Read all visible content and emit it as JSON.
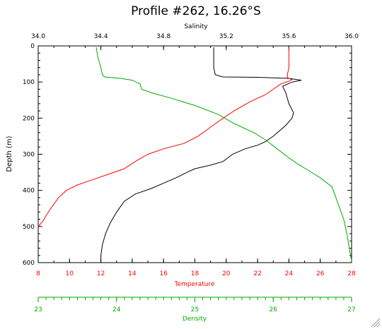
{
  "chart_data": {
    "type": "line",
    "title": "Profile #262, 16.26°S",
    "ylabel": "Depth (m)",
    "ylim": [
      0,
      600
    ],
    "y_reversed": true,
    "y_ticks": [
      0,
      100,
      200,
      300,
      400,
      500,
      600
    ],
    "axes": {
      "salinity": {
        "label": "Salinity",
        "position": "top",
        "color": "#000000",
        "range": [
          34.0,
          36.0
        ],
        "ticks": [
          34.0,
          34.4,
          34.8,
          35.2,
          35.6,
          36.0
        ],
        "tick_labels": [
          "34.0",
          "34.4",
          "34.8",
          "35.2",
          "35.6",
          "36.0"
        ]
      },
      "temperature": {
        "label": "Temperature",
        "position": "bottom",
        "color": "#ff0000",
        "range": [
          8,
          28
        ],
        "ticks": [
          8,
          10,
          12,
          14,
          16,
          18,
          20,
          22,
          24,
          26,
          28
        ],
        "tick_labels": [
          "8",
          "10",
          "12",
          "14",
          "16",
          "18",
          "20",
          "22",
          "24",
          "26",
          "28"
        ]
      },
      "density": {
        "label": "Density",
        "position": "bottom",
        "color": "#00aa00",
        "range": [
          23,
          27
        ],
        "ticks": [
          23,
          24,
          25,
          26,
          27
        ],
        "tick_labels": [
          "23",
          "24",
          "25",
          "26",
          "27"
        ]
      }
    },
    "series": [
      {
        "axis": "salinity",
        "color": "#000000",
        "points": [
          [
            35.12,
            4
          ],
          [
            35.12,
            30
          ],
          [
            35.12,
            60
          ],
          [
            35.13,
            80
          ],
          [
            35.18,
            86
          ],
          [
            35.4,
            87
          ],
          [
            35.6,
            90
          ],
          [
            35.68,
            95
          ],
          [
            35.62,
            100
          ],
          [
            35.56,
            112
          ],
          [
            35.58,
            130
          ],
          [
            35.6,
            160
          ],
          [
            35.63,
            185
          ],
          [
            35.62,
            200
          ],
          [
            35.58,
            220
          ],
          [
            35.5,
            250
          ],
          [
            35.45,
            265
          ],
          [
            35.4,
            275
          ],
          [
            35.32,
            285
          ],
          [
            35.24,
            300
          ],
          [
            35.18,
            320
          ],
          [
            35.1,
            330
          ],
          [
            35.0,
            340
          ],
          [
            34.95,
            350
          ],
          [
            34.88,
            365
          ],
          [
            34.8,
            380
          ],
          [
            34.72,
            395
          ],
          [
            34.62,
            410
          ],
          [
            34.55,
            430
          ],
          [
            34.5,
            460
          ],
          [
            34.46,
            490
          ],
          [
            34.43,
            520
          ],
          [
            34.41,
            550
          ],
          [
            34.4,
            580
          ],
          [
            34.4,
            600
          ]
        ]
      },
      {
        "axis": "temperature",
        "color": "#ff0000",
        "points": [
          [
            24.0,
            4
          ],
          [
            24.0,
            30
          ],
          [
            24.0,
            60
          ],
          [
            23.9,
            80
          ],
          [
            23.9,
            88
          ],
          [
            24.2,
            93
          ],
          [
            24.0,
            98
          ],
          [
            23.5,
            105
          ],
          [
            23.0,
            120
          ],
          [
            22.5,
            135
          ],
          [
            21.5,
            155
          ],
          [
            20.5,
            180
          ],
          [
            19.8,
            200
          ],
          [
            19.0,
            225
          ],
          [
            18.2,
            250
          ],
          [
            17.3,
            270
          ],
          [
            16.0,
            285
          ],
          [
            15.0,
            300
          ],
          [
            14.2,
            320
          ],
          [
            13.5,
            340
          ],
          [
            12.5,
            355
          ],
          [
            11.5,
            370
          ],
          [
            10.5,
            385
          ],
          [
            9.8,
            400
          ],
          [
            9.3,
            420
          ],
          [
            8.8,
            450
          ],
          [
            8.5,
            470
          ],
          [
            8.3,
            485
          ],
          [
            8.0,
            500
          ]
        ]
      },
      {
        "axis": "density",
        "color": "#00aa00",
        "points": [
          [
            23.74,
            4
          ],
          [
            23.76,
            30
          ],
          [
            23.8,
            60
          ],
          [
            23.82,
            80
          ],
          [
            23.85,
            86
          ],
          [
            24.05,
            90
          ],
          [
            24.2,
            95
          ],
          [
            24.3,
            105
          ],
          [
            24.32,
            120
          ],
          [
            24.45,
            130
          ],
          [
            24.7,
            145
          ],
          [
            25.0,
            165
          ],
          [
            25.3,
            190
          ],
          [
            25.5,
            215
          ],
          [
            25.75,
            240
          ],
          [
            25.9,
            260
          ],
          [
            26.05,
            285
          ],
          [
            26.2,
            310
          ],
          [
            26.3,
            325
          ],
          [
            26.45,
            345
          ],
          [
            26.6,
            365
          ],
          [
            26.75,
            390
          ],
          [
            26.8,
            420
          ],
          [
            26.85,
            450
          ],
          [
            26.9,
            480
          ],
          [
            26.94,
            520
          ],
          [
            26.97,
            560
          ],
          [
            27.0,
            595
          ]
        ]
      }
    ]
  }
}
